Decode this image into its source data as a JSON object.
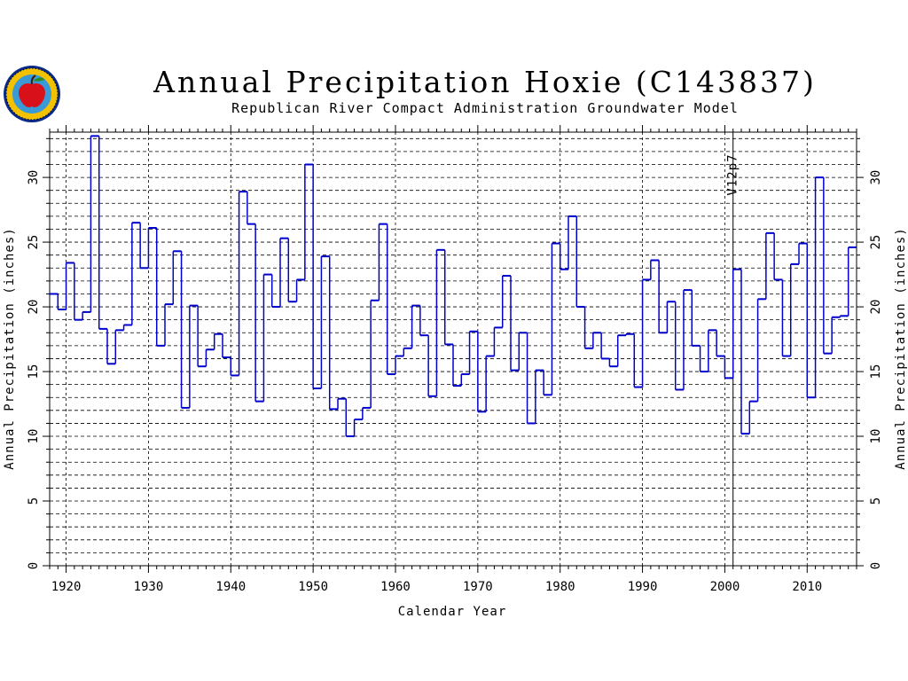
{
  "chart_data": {
    "type": "line",
    "step": true,
    "title": "Annual Precipitation Hoxie (C143837)",
    "subtitle": "Republican River Compact Administration Groundwater Model",
    "xlabel": "Calendar Year",
    "ylabel": "Annual Precipitation (inches)",
    "xlim": [
      1918,
      2016
    ],
    "ylim": [
      0,
      33.5
    ],
    "xticks": [
      1920,
      1930,
      1940,
      1950,
      1960,
      1970,
      1980,
      1990,
      2000,
      2010
    ],
    "xtick_labels": [
      "1920",
      "1930",
      "1940",
      "1950",
      "1960",
      "1970",
      "1980",
      "1990",
      "2000",
      "2010"
    ],
    "yticks": [
      0,
      5,
      10,
      15,
      20,
      25,
      30
    ],
    "ytick_labels": [
      "0",
      "5",
      "10",
      "15",
      "20",
      "25",
      "30"
    ],
    "grid": true,
    "annotation": {
      "text": "V12p7",
      "x": 2001
    },
    "series": [
      {
        "color": "#0000cc",
        "x": [
          1918,
          1919,
          1920,
          1921,
          1922,
          1923,
          1924,
          1925,
          1926,
          1927,
          1928,
          1929,
          1930,
          1931,
          1932,
          1933,
          1934,
          1935,
          1936,
          1937,
          1938,
          1939,
          1940,
          1941,
          1942,
          1943,
          1944,
          1945,
          1946,
          1947,
          1948,
          1949,
          1950,
          1951,
          1952,
          1953,
          1954,
          1955,
          1956,
          1957,
          1958,
          1959,
          1960,
          1961,
          1962,
          1963,
          1964,
          1965,
          1966,
          1967,
          1968,
          1969,
          1970,
          1971,
          1972,
          1973,
          1974,
          1975,
          1976,
          1977,
          1978,
          1979,
          1980,
          1981,
          1982,
          1983,
          1984,
          1985,
          1986,
          1987,
          1988,
          1989,
          1990,
          1991,
          1992,
          1993,
          1994,
          1995,
          1996,
          1997,
          1998,
          1999,
          2000,
          2001,
          2002,
          2003,
          2004,
          2005,
          2006,
          2007,
          2008,
          2009,
          2010,
          2011,
          2012,
          2013,
          2014,
          2015
        ],
        "values": [
          21.0,
          19.8,
          23.4,
          19.0,
          19.6,
          33.2,
          18.3,
          15.6,
          18.2,
          18.6,
          26.5,
          23.0,
          26.1,
          17.0,
          20.2,
          24.3,
          12.2,
          20.1,
          15.4,
          16.7,
          17.9,
          16.1,
          14.7,
          28.9,
          26.4,
          12.7,
          22.5,
          20.0,
          25.3,
          20.4,
          22.1,
          31.0,
          13.7,
          23.9,
          12.1,
          12.9,
          10.0,
          11.3,
          12.2,
          20.5,
          26.4,
          14.8,
          16.2,
          16.8,
          20.1,
          17.8,
          13.1,
          24.4,
          17.1,
          13.9,
          14.8,
          18.1,
          11.9,
          16.2,
          18.4,
          22.4,
          15.1,
          18.0,
          11.0,
          15.1,
          13.2,
          24.9,
          22.9,
          27.0,
          20.0,
          16.8,
          18.0,
          16.0,
          15.4,
          17.8,
          17.9,
          13.8,
          22.1,
          23.6,
          18.0,
          20.4,
          13.6,
          21.3,
          17.0,
          15.0,
          18.2,
          16.2,
          14.5,
          22.9,
          10.2,
          12.7,
          20.6,
          25.7,
          22.1,
          16.2,
          23.3,
          24.9,
          13.0,
          30.0,
          16.4,
          19.2,
          19.3,
          24.6
        ]
      }
    ]
  }
}
